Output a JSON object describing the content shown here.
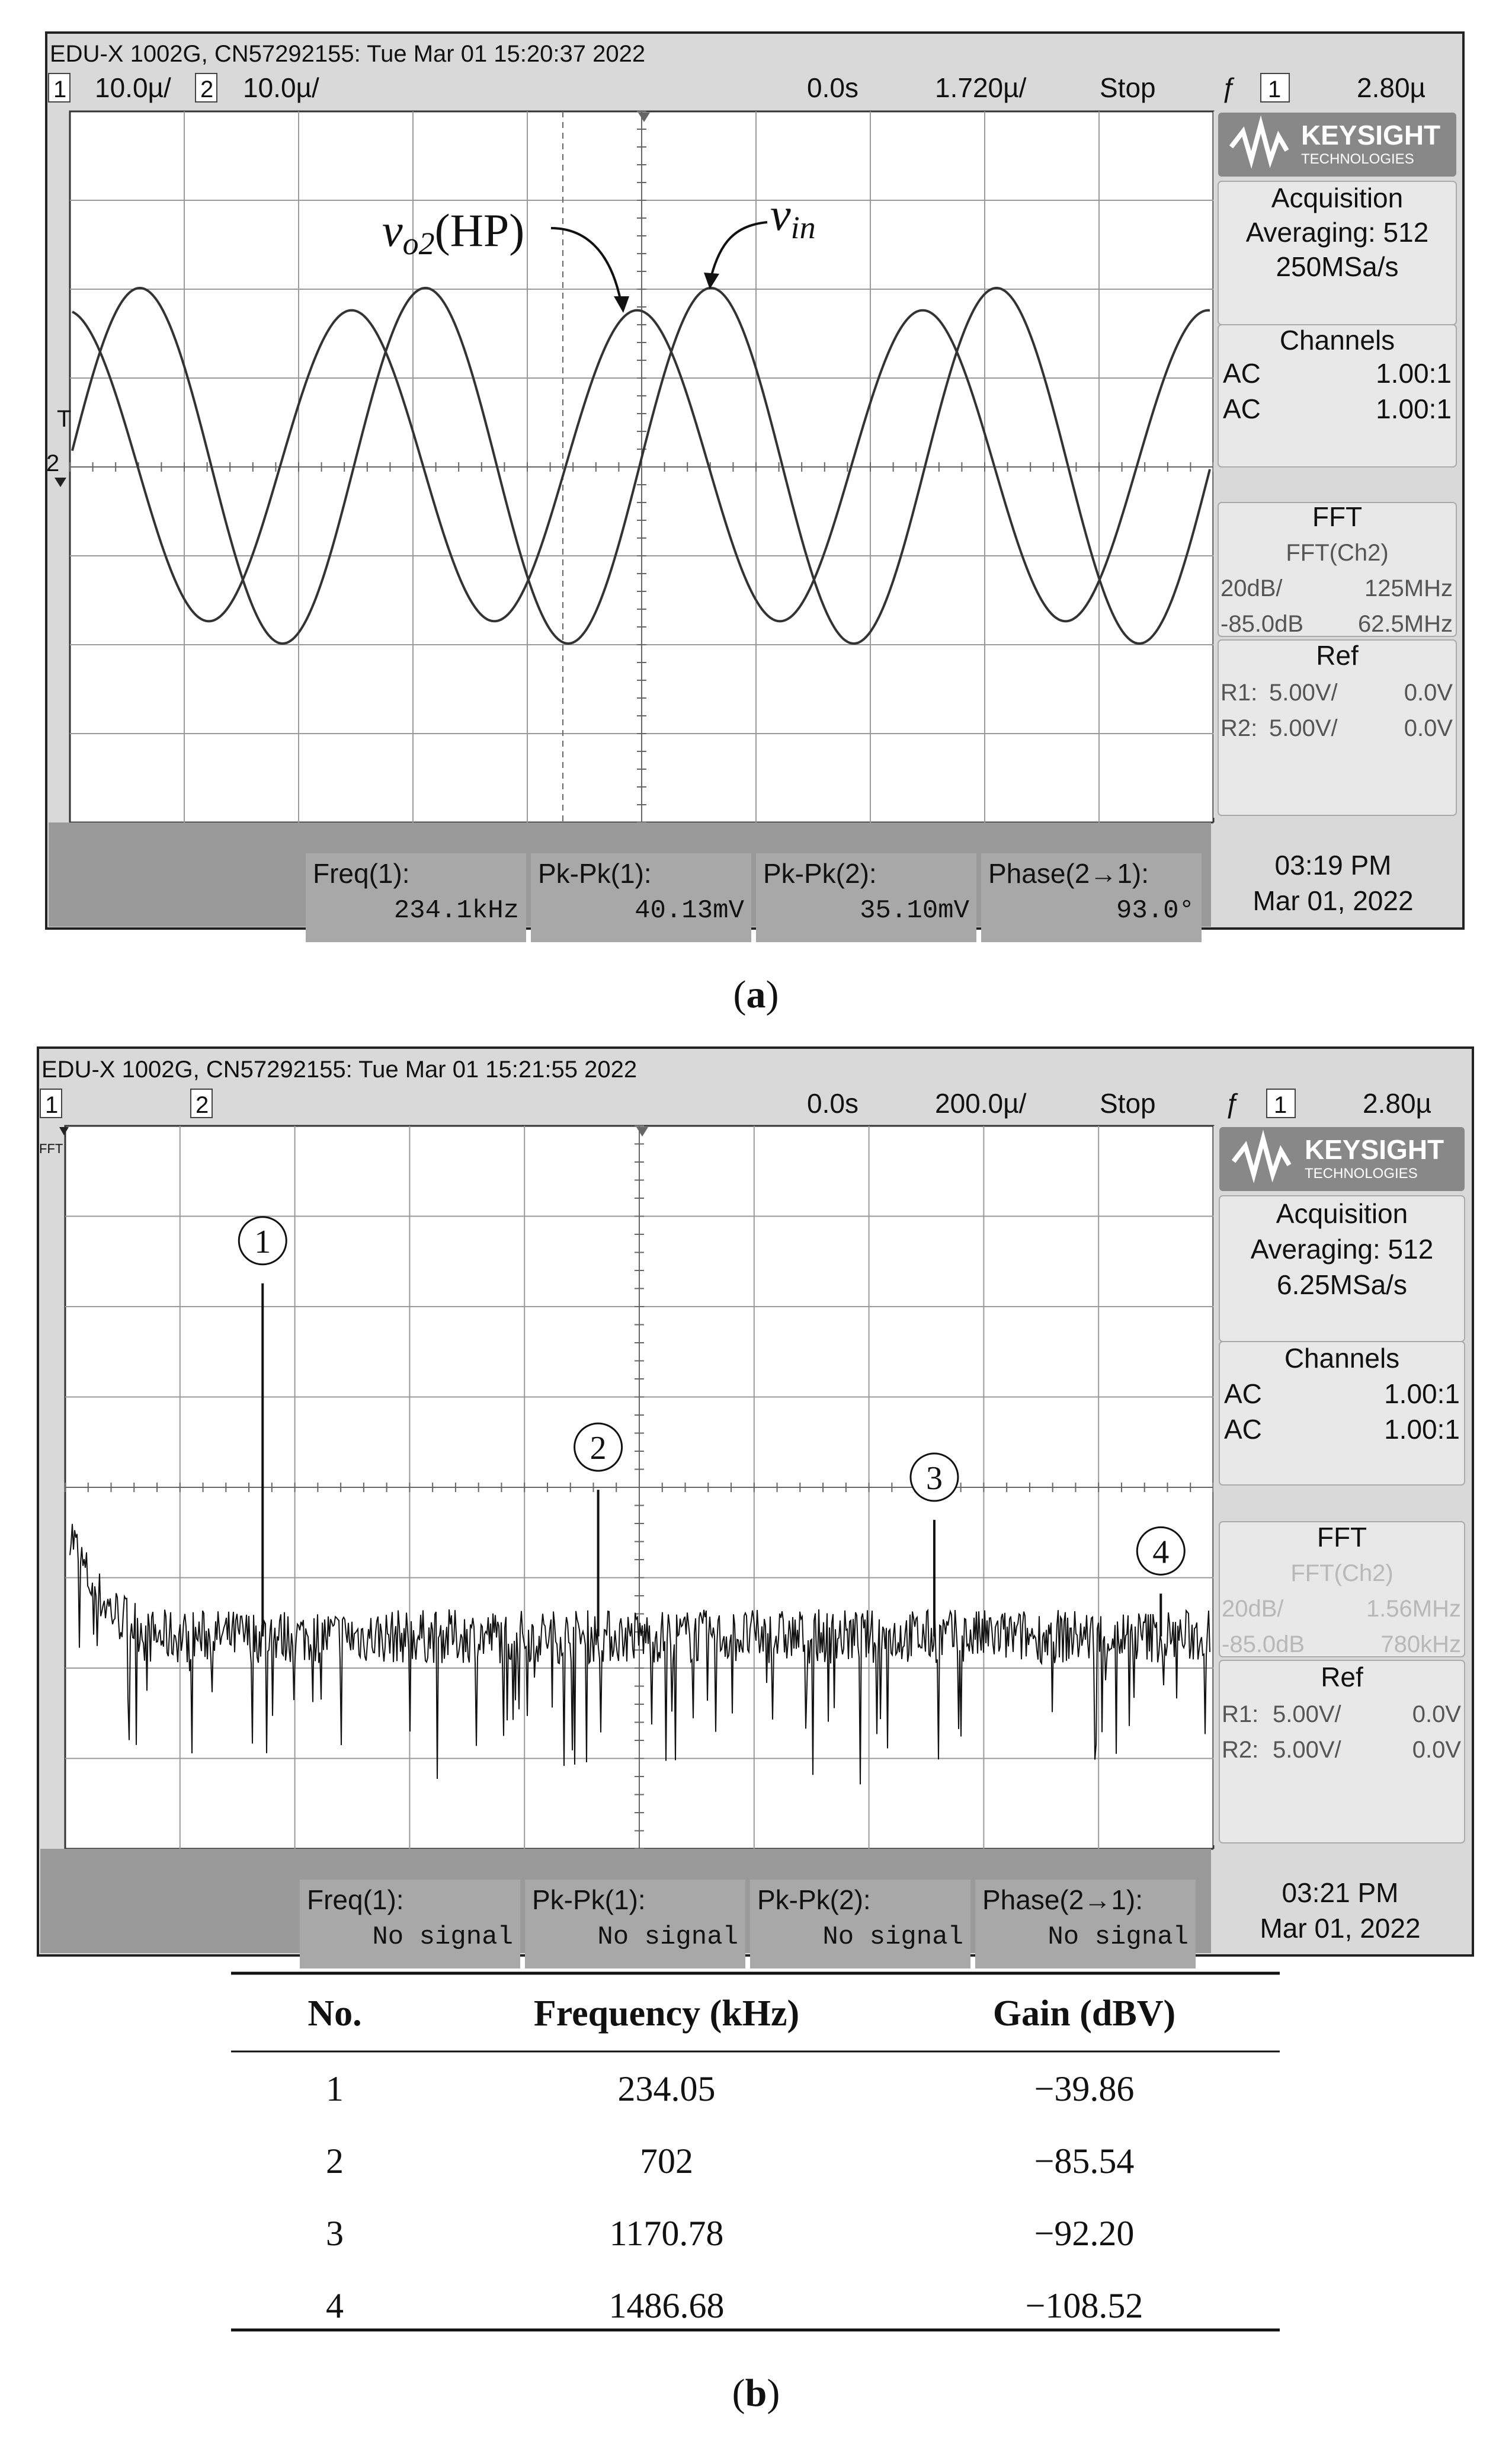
{
  "panel_a": {
    "caption_open": "(",
    "caption_letter": "a",
    "caption_close": ")",
    "title_bar": "EDU-X 1002G, CN57292155: Tue Mar 01 15:20:37 2022",
    "status": {
      "ch1_num": "1",
      "ch1_scale": "10.0µ/",
      "ch2_num": "2",
      "ch2_scale": "10.0µ/",
      "delay": "0.0s",
      "timebase": "1.720µ/",
      "run_state": "Stop",
      "trigger_icon": "ƒ",
      "trigger_ch": "1",
      "trigger_level": "2.80µ"
    },
    "annotations": {
      "vo2_v": "v",
      "vo2_sub": "o2",
      "vo2_paren": "(HP)",
      "vin_v": "v",
      "vin_sub": "in"
    },
    "side": {
      "brand": "KEYSIGHT",
      "brand_sub": "TECHNOLOGIES",
      "acq_title": "Acquisition",
      "acq_line1": "Averaging: 512",
      "acq_line2": "250MSa/s",
      "ch_title": "Channels",
      "ch1_coupling": "AC",
      "ch1_probe": "1.00:1",
      "ch2_coupling": "AC",
      "ch2_probe": "1.00:1",
      "fft_title": "FFT",
      "fft_src": "FFT(Ch2)",
      "fft_scale": "20dB/",
      "fft_span": "125MHz",
      "fft_offset": "-85.0dB",
      "fft_center": "62.5MHz",
      "ref_title": "Ref",
      "r1_label": "R1:",
      "r1_scale": "5.00V/",
      "r1_offset": "0.0V",
      "r2_label": "R2:",
      "r2_scale": "5.00V/",
      "r2_offset": "0.0V"
    },
    "measurements": [
      {
        "label": "Freq(1):",
        "value": "234.1kHz"
      },
      {
        "label": "Pk-Pk(1):",
        "value": "40.13mV"
      },
      {
        "label": "Pk-Pk(2):",
        "value": "35.10mV"
      },
      {
        "label": "Phase(2→1):",
        "value": "93.0°"
      }
    ],
    "clock_time": "03:19 PM",
    "clock_date": "Mar 01, 2022",
    "markers": {
      "trig": "T",
      "ch1": "1",
      "ch2": "2"
    }
  },
  "panel_b": {
    "caption_open": "(",
    "caption_letter": "b",
    "caption_close": ")",
    "title_bar": "EDU-X 1002G, CN57292155: Tue Mar 01 15:21:55 2022",
    "status": {
      "ch1_num": "1",
      "ch2_num": "2",
      "delay": "0.0s",
      "timebase": "200.0µ/",
      "run_state": "Stop",
      "trigger_icon": "ƒ",
      "trigger_ch": "1",
      "trigger_level": "2.80µ"
    },
    "fft_marker": "FFT",
    "peaks": [
      {
        "num": "1"
      },
      {
        "num": "2"
      },
      {
        "num": "3"
      },
      {
        "num": "4"
      }
    ],
    "side": {
      "brand": "KEYSIGHT",
      "brand_sub": "TECHNOLOGIES",
      "acq_title": "Acquisition",
      "acq_line1": "Averaging: 512",
      "acq_line2": "6.25MSa/s",
      "ch_title": "Channels",
      "ch1_coupling": "AC",
      "ch1_probe": "1.00:1",
      "ch2_coupling": "AC",
      "ch2_probe": "1.00:1",
      "fft_title": "FFT",
      "fft_src": "FFT(Ch2)",
      "fft_scale": "20dB/",
      "fft_span": "1.56MHz",
      "fft_offset": "-85.0dB",
      "fft_center": "780kHz",
      "ref_title": "Ref",
      "r1_label": "R1:",
      "r1_scale": "5.00V/",
      "r1_offset": "0.0V",
      "r2_label": "R2:",
      "r2_scale": "5.00V/",
      "r2_offset": "0.0V"
    },
    "measurements": [
      {
        "label": "Freq(1):",
        "value": "No signal"
      },
      {
        "label": "Pk-Pk(1):",
        "value": "No signal"
      },
      {
        "label": "Pk-Pk(2):",
        "value": "No signal"
      },
      {
        "label": "Phase(2→1):",
        "value": "No signal"
      }
    ],
    "clock_time": "03:21 PM",
    "clock_date": "Mar 01, 2022"
  },
  "table": {
    "headers": [
      "No.",
      "Frequency (kHz)",
      "Gain (dBV)"
    ],
    "rows": [
      [
        "1",
        "234.05",
        "−39.86"
      ],
      [
        "2",
        "702",
        "−85.54"
      ],
      [
        "3",
        "1170.78",
        "−92.20"
      ],
      [
        "4",
        "1486.68",
        "−108.52"
      ]
    ]
  },
  "chart_data": [
    {
      "type": "line",
      "series": [
        {
          "name": "vo2 (HP)",
          "waveform": "sine",
          "phase_deg_rel_to_vin": 93.0,
          "pk_pk_mV": 35.1
        },
        {
          "name": "vin",
          "waveform": "sine",
          "frequency_kHz": 234.1,
          "pk_pk_mV": 40.13
        }
      ]
    },
    {
      "type": "line",
      "peaks": [
        {
          "no": 1,
          "frequency_kHz": 234.05,
          "gain_dBV": -39.86
        },
        {
          "no": 2,
          "frequency_kHz": 702,
          "gain_dBV": -85.54
        },
        {
          "no": 3,
          "frequency_kHz": 1170.78,
          "gain_dBV": -92.2
        },
        {
          "no": 4,
          "frequency_kHz": 1486.68,
          "gain_dBV": -108.52
        }
      ],
      "fft_center": "780kHz",
      "fft_span": "1.56MHz",
      "fft_scale": "20dB/",
      "fft_offset": "-85.0dB"
    }
  ]
}
